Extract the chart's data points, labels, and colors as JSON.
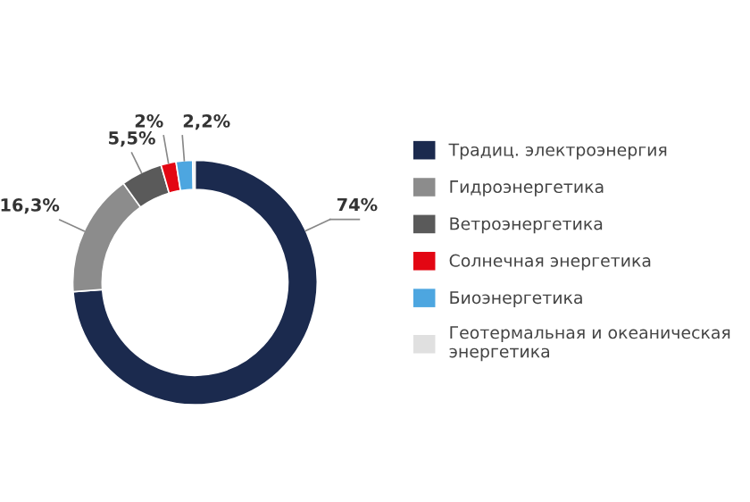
{
  "chart_data": {
    "type": "donut",
    "categories": [
      "Традиц. электроэнергия",
      "Гидроэнергетика",
      "Ветроэнергетика",
      "Солнечная энергетика",
      "Биоэнергетика",
      "Геотермальная и океаническая\nэнергетика"
    ],
    "values": [
      74,
      16.3,
      5.5,
      2,
      2.2,
      0.3
    ],
    "colors": [
      "#1b2a4e",
      "#8c8c8c",
      "#5a5a5a",
      "#e30613",
      "#4da6e0",
      "#e0e0e0"
    ],
    "value_labels": [
      "74%",
      "16,3%",
      "5,5%",
      "2%",
      "2,2%",
      null
    ],
    "legend": "right"
  }
}
